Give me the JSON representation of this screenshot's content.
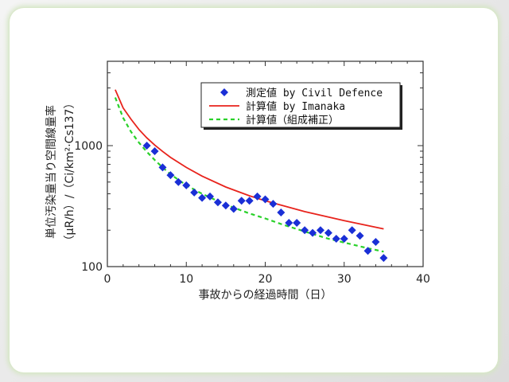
{
  "chart_data": {
    "type": "scatter",
    "xlabel": "事故からの経過時間（日）",
    "ylabel": "単位汚染量当り空間線量率",
    "ylabel_unit": "（μR/h）/（Ci/km²·Cs137）",
    "xlim": [
      0,
      40
    ],
    "ylim": [
      100,
      5000
    ],
    "y_scale": "log",
    "x_ticks": [
      "0",
      "10",
      "20",
      "30",
      "40"
    ],
    "y_ticks": [
      "100",
      "1000"
    ],
    "legend_position": "top-right",
    "series": [
      {
        "name": "測定値 by Civil Defence",
        "kind": "scatter",
        "marker": "diamond",
        "color": "#1a2fd6",
        "x": [
          5,
          6,
          7,
          8,
          9,
          10,
          11,
          12,
          13,
          14,
          15,
          16,
          17,
          18,
          19,
          20,
          21,
          22,
          23,
          24,
          25,
          26,
          27,
          28,
          29,
          30,
          31,
          32,
          33,
          34,
          35
        ],
        "y": [
          1000,
          900,
          660,
          570,
          500,
          470,
          410,
          370,
          380,
          340,
          320,
          300,
          350,
          350,
          380,
          360,
          330,
          280,
          230,
          230,
          200,
          190,
          200,
          190,
          170,
          170,
          200,
          180,
          135,
          160,
          118
        ]
      },
      {
        "name": "計算値 by Imanaka",
        "kind": "line",
        "color": "#e8231c",
        "x": [
          1,
          2,
          3,
          4,
          5,
          6,
          7,
          8,
          10,
          12,
          15,
          18,
          20,
          25,
          30,
          35
        ],
        "y": [
          2900,
          2050,
          1650,
          1360,
          1160,
          1010,
          895,
          800,
          660,
          560,
          455,
          385,
          350,
          285,
          240,
          205
        ]
      },
      {
        "name": "計算値（組成補正）",
        "kind": "dashed-line",
        "color": "#2ad12a",
        "x": [
          1,
          2,
          3,
          4,
          5,
          6,
          7,
          8,
          10,
          12,
          15,
          18,
          20,
          22,
          25,
          28,
          30,
          33,
          35
        ],
        "y": [
          2500,
          1700,
          1300,
          1060,
          890,
          760,
          660,
          580,
          470,
          400,
          325,
          275,
          250,
          225,
          195,
          170,
          158,
          142,
          133
        ]
      }
    ]
  }
}
